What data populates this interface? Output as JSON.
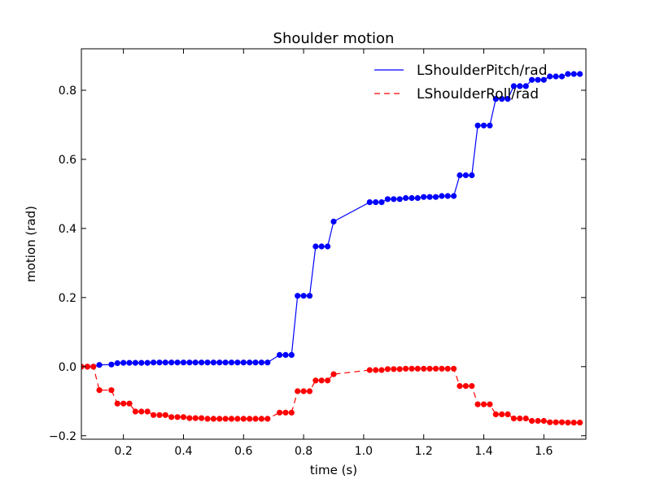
{
  "chart_data": {
    "type": "line",
    "title": "Shoulder motion",
    "xlabel": "time (s)",
    "ylabel": "motion (rad)",
    "xlim": [
      0.06,
      1.74
    ],
    "ylim": [
      -0.21,
      0.92
    ],
    "xticks": [
      0.2,
      0.4,
      0.6,
      0.8,
      1.0,
      1.2,
      1.4,
      1.6
    ],
    "xtick_labels": [
      "0.2",
      "0.4",
      "0.6",
      "0.8",
      "1.0",
      "1.2",
      "1.4",
      "1.6"
    ],
    "yticks": [
      -0.2,
      0.0,
      0.2,
      0.4,
      0.6,
      0.8
    ],
    "ytick_labels": [
      "−0.2",
      "0.0",
      "0.2",
      "0.4",
      "0.6",
      "0.8"
    ],
    "grid": false,
    "legend_position": "top-right",
    "series": [
      {
        "name": "LShoulderPitch/rad",
        "color": "#0000ff",
        "linestyle": "solid",
        "marker": "circle",
        "x": [
          0.06,
          0.08,
          0.1,
          0.12,
          0.16,
          0.18,
          0.2,
          0.22,
          0.24,
          0.26,
          0.28,
          0.3,
          0.32,
          0.34,
          0.36,
          0.38,
          0.4,
          0.42,
          0.44,
          0.46,
          0.48,
          0.5,
          0.52,
          0.54,
          0.56,
          0.58,
          0.6,
          0.62,
          0.64,
          0.66,
          0.68,
          0.72,
          0.74,
          0.76,
          0.78,
          0.8,
          0.82,
          0.84,
          0.86,
          0.88,
          0.9,
          1.02,
          1.04,
          1.06,
          1.08,
          1.1,
          1.12,
          1.14,
          1.16,
          1.18,
          1.2,
          1.22,
          1.24,
          1.26,
          1.28,
          1.3,
          1.32,
          1.34,
          1.36,
          1.38,
          1.4,
          1.42,
          1.44,
          1.46,
          1.48,
          1.5,
          1.52,
          1.54,
          1.56,
          1.58,
          1.6,
          1.62,
          1.64,
          1.66,
          1.68,
          1.7,
          1.72
        ],
        "y": [
          0.0,
          0.0,
          0.0,
          0.005,
          0.006,
          0.01,
          0.011,
          0.011,
          0.011,
          0.011,
          0.011,
          0.012,
          0.012,
          0.012,
          0.012,
          0.012,
          0.012,
          0.012,
          0.012,
          0.012,
          0.012,
          0.012,
          0.012,
          0.012,
          0.012,
          0.012,
          0.012,
          0.012,
          0.012,
          0.012,
          0.012,
          0.034,
          0.034,
          0.034,
          0.205,
          0.205,
          0.205,
          0.348,
          0.348,
          0.348,
          0.42,
          0.476,
          0.476,
          0.476,
          0.485,
          0.485,
          0.485,
          0.488,
          0.488,
          0.488,
          0.491,
          0.491,
          0.491,
          0.494,
          0.494,
          0.494,
          0.554,
          0.554,
          0.554,
          0.698,
          0.698,
          0.698,
          0.775,
          0.775,
          0.775,
          0.812,
          0.812,
          0.812,
          0.83,
          0.83,
          0.83,
          0.84,
          0.84,
          0.84,
          0.847,
          0.847,
          0.847
        ]
      },
      {
        "name": "LShoulderRoll/rad",
        "color": "#ff0000",
        "linestyle": "dashed",
        "marker": "circle",
        "x": [
          0.06,
          0.08,
          0.1,
          0.12,
          0.16,
          0.18,
          0.2,
          0.22,
          0.24,
          0.26,
          0.28,
          0.3,
          0.32,
          0.34,
          0.36,
          0.38,
          0.4,
          0.42,
          0.44,
          0.46,
          0.48,
          0.5,
          0.52,
          0.54,
          0.56,
          0.58,
          0.6,
          0.62,
          0.64,
          0.66,
          0.68,
          0.72,
          0.74,
          0.76,
          0.78,
          0.8,
          0.82,
          0.84,
          0.86,
          0.88,
          0.9,
          1.02,
          1.04,
          1.06,
          1.08,
          1.1,
          1.12,
          1.14,
          1.16,
          1.18,
          1.2,
          1.22,
          1.24,
          1.26,
          1.28,
          1.3,
          1.32,
          1.34,
          1.36,
          1.38,
          1.4,
          1.42,
          1.44,
          1.46,
          1.48,
          1.5,
          1.52,
          1.54,
          1.56,
          1.58,
          1.6,
          1.62,
          1.64,
          1.66,
          1.68,
          1.7,
          1.72
        ],
        "y": [
          0.0,
          0.0,
          0.0,
          -0.068,
          -0.068,
          -0.107,
          -0.107,
          -0.107,
          -0.13,
          -0.13,
          -0.13,
          -0.14,
          -0.14,
          -0.14,
          -0.146,
          -0.146,
          -0.146,
          -0.149,
          -0.149,
          -0.149,
          -0.151,
          -0.151,
          -0.151,
          -0.151,
          -0.151,
          -0.151,
          -0.151,
          -0.151,
          -0.151,
          -0.151,
          -0.151,
          -0.133,
          -0.133,
          -0.133,
          -0.071,
          -0.071,
          -0.071,
          -0.04,
          -0.04,
          -0.04,
          -0.022,
          -0.01,
          -0.01,
          -0.01,
          -0.007,
          -0.007,
          -0.007,
          -0.006,
          -0.006,
          -0.006,
          -0.006,
          -0.006,
          -0.006,
          -0.006,
          -0.006,
          -0.006,
          -0.056,
          -0.056,
          -0.056,
          -0.109,
          -0.109,
          -0.109,
          -0.138,
          -0.138,
          -0.138,
          -0.15,
          -0.15,
          -0.15,
          -0.157,
          -0.157,
          -0.157,
          -0.161,
          -0.161,
          -0.161,
          -0.162,
          -0.162,
          -0.162
        ]
      }
    ]
  }
}
